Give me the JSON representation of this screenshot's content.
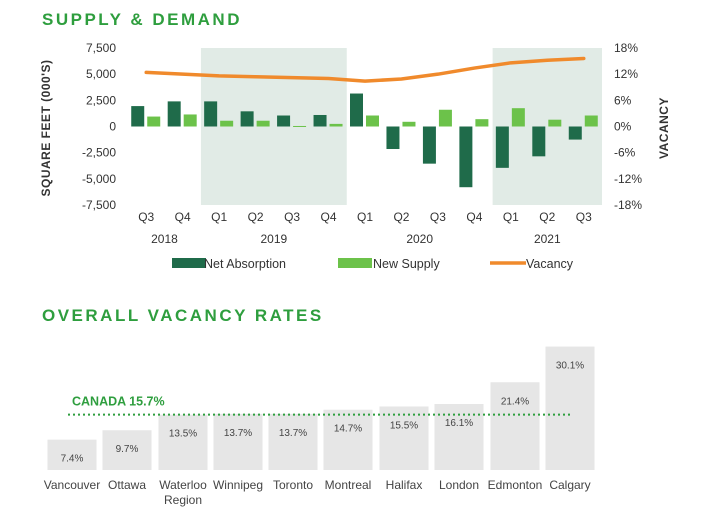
{
  "colors": {
    "title_green": "#2e9e3e",
    "net_absorption": "#1f6b4a",
    "new_supply": "#6cc24a",
    "vacancy_line": "#f08a2c",
    "shade": "#e1ebe6",
    "canada_line": "#2e9e3e",
    "bar_grey": "#e6e6e6"
  },
  "supply_demand": {
    "section_title": "SUPPLY & DEMAND",
    "chart_data": {
      "type": "bar",
      "title": "SUPPLY & DEMAND",
      "ylabel_left": "SQUARE FEET (000'S)",
      "ylabel_right": "VACANCY",
      "yticks_left": [
        "7,500",
        "5,000",
        "2,500",
        "0",
        "-2,500",
        "-5,000",
        "-7,500"
      ],
      "ylim_left": [
        -7500,
        7500
      ],
      "yticks_right": [
        "18%",
        "12%",
        "6%",
        "0%",
        "-6%",
        "-12%",
        "-18%"
      ],
      "ylim_right": [
        -18,
        18
      ],
      "categories": [
        "Q3",
        "Q4",
        "Q1",
        "Q2",
        "Q3",
        "Q4",
        "Q1",
        "Q2",
        "Q3",
        "Q4",
        "Q1",
        "Q2",
        "Q3"
      ],
      "year_labels": [
        {
          "label": "2018",
          "start": 0,
          "end": 1
        },
        {
          "label": "2019",
          "start": 2,
          "end": 5
        },
        {
          "label": "2020",
          "start": 6,
          "end": 9
        },
        {
          "label": "2021",
          "start": 10,
          "end": 12
        }
      ],
      "shaded_years": [
        "2019",
        "2021"
      ],
      "legend_position": "bottom",
      "series": [
        {
          "name": "Net Absorption",
          "type": "bar",
          "values": [
            1950,
            2400,
            2400,
            1450,
            1050,
            1100,
            3150,
            -2150,
            -3550,
            -5800,
            -3950,
            -2850,
            -1250
          ]
        },
        {
          "name": "New Supply",
          "type": "bar",
          "values": [
            950,
            1150,
            550,
            550,
            50,
            250,
            1050,
            450,
            1600,
            700,
            1750,
            650,
            1050
          ]
        },
        {
          "name": "Vacancy",
          "type": "line",
          "values": [
            12.4,
            12.0,
            11.6,
            11.4,
            11.2,
            11.0,
            10.4,
            10.9,
            12.0,
            13.4,
            14.6,
            15.2,
            15.6
          ]
        }
      ]
    }
  },
  "vacancy_rates": {
    "section_title": "OVERALL VACANCY RATES",
    "chart_data": {
      "type": "bar",
      "title": "OVERALL VACANCY RATES",
      "categories": [
        "Vancouver",
        "Ottawa",
        "Waterloo Region",
        "Winnipeg",
        "Toronto",
        "Montreal",
        "Halifax",
        "London",
        "Edmonton",
        "Calgary"
      ],
      "category_lines": [
        [
          "Vancouver"
        ],
        [
          "Ottawa"
        ],
        [
          "Waterloo",
          "Region"
        ],
        [
          "Winnipeg"
        ],
        [
          "Toronto"
        ],
        [
          "Montreal"
        ],
        [
          "Halifax"
        ],
        [
          "London"
        ],
        [
          "Edmonton"
        ],
        [
          "Calgary"
        ]
      ],
      "values": [
        7.4,
        9.7,
        13.5,
        13.7,
        13.7,
        14.7,
        15.5,
        16.1,
        21.4,
        30.1
      ],
      "data_labels": [
        "7.4%",
        "9.7%",
        "13.5%",
        "13.7%",
        "13.7%",
        "14.7%",
        "15.5%",
        "16.1%",
        "21.4%",
        "30.1%"
      ],
      "reference": {
        "label": "CANADA 15.7%",
        "value": 15.7
      },
      "ylim": [
        0,
        32
      ]
    }
  }
}
